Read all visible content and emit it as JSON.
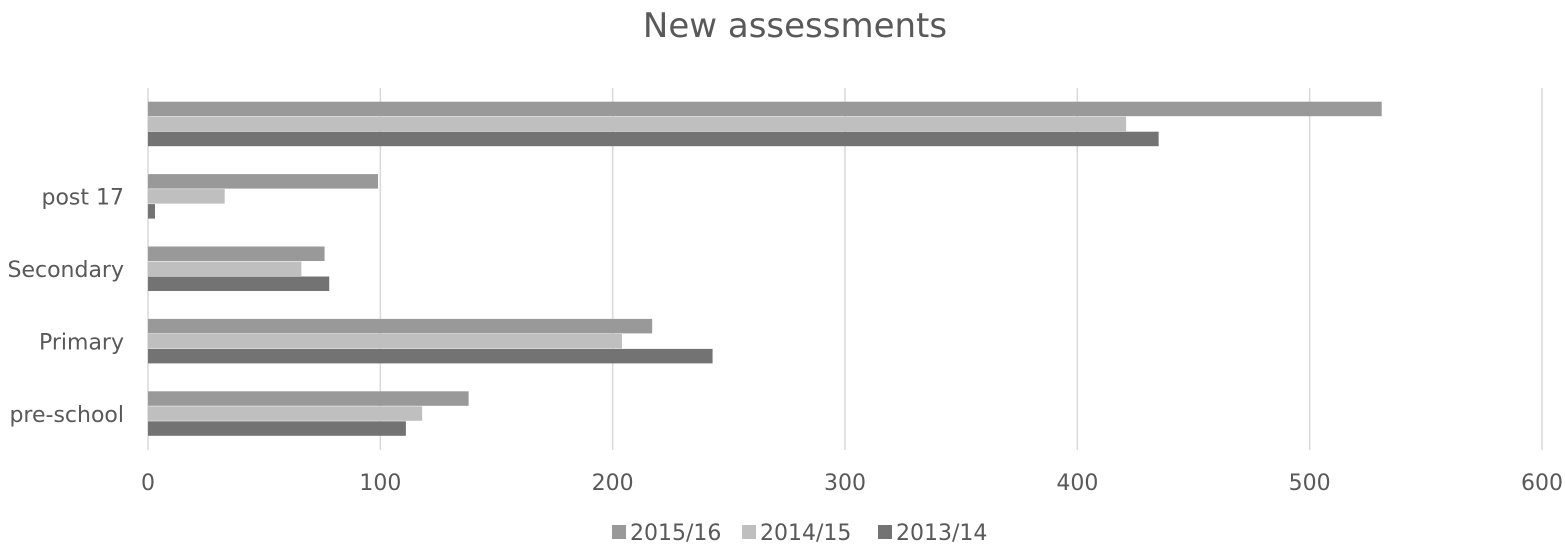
{
  "chart_data": {
    "type": "bar",
    "orientation": "horizontal",
    "title": "New assessments",
    "categories": [
      "pre-school",
      "Primary",
      "Secondary",
      "post 17",
      ""
    ],
    "series": [
      {
        "name": "2015/16",
        "color": "#999999",
        "values": [
          138,
          217,
          76,
          99,
          531
        ]
      },
      {
        "name": "2014/15",
        "color": "#bfbfbf",
        "values": [
          118,
          204,
          66,
          33,
          421
        ]
      },
      {
        "name": "2013/14",
        "color": "#737373",
        "values": [
          111,
          243,
          78,
          3,
          435
        ]
      }
    ],
    "xlim": [
      0,
      600
    ],
    "xticks": [
      0,
      100,
      200,
      300,
      400,
      500,
      600
    ],
    "grid": true,
    "legend_position": "bottom"
  }
}
